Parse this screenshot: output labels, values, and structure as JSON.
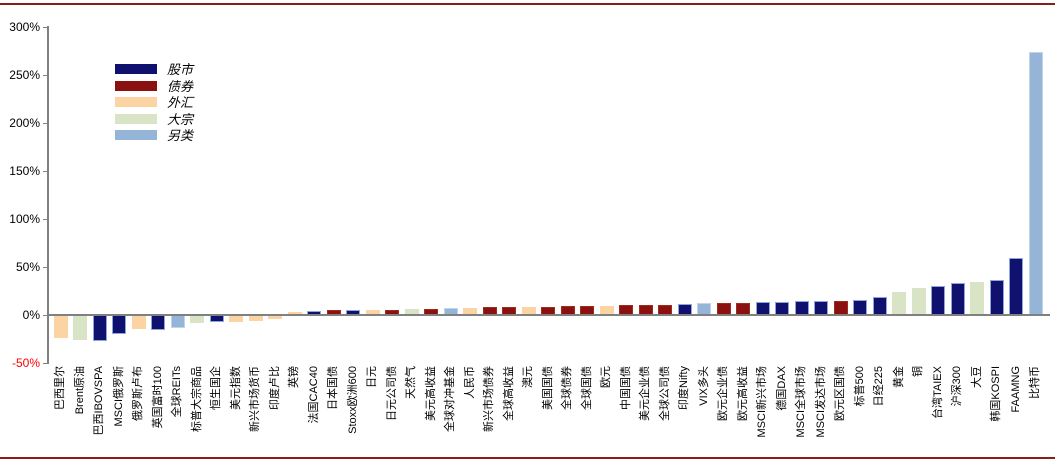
{
  "frame": {
    "top_bottom_border_color": "#8B1C1C",
    "axis_color": "#808080",
    "background": "#FFFFFF",
    "negative_tick_color": "#FF0000"
  },
  "chart_data": {
    "type": "bar",
    "title": "",
    "xlabel": "",
    "ylabel": "",
    "unit": "%",
    "ylim": [
      -50,
      300
    ],
    "grid": false,
    "legend_position": "upper-left-inside",
    "y_ticks": [
      {
        "label": "300%",
        "value": 300,
        "color": "#000000"
      },
      {
        "label": "250%",
        "value": 250,
        "color": "#000000"
      },
      {
        "label": "200%",
        "value": 200,
        "color": "#000000"
      },
      {
        "label": "150%",
        "value": 150,
        "color": "#000000"
      },
      {
        "label": "100%",
        "value": 100,
        "color": "#000000"
      },
      {
        "label": "50%",
        "value": 50,
        "color": "#000000"
      },
      {
        "label": "0%",
        "value": 0,
        "color": "#000000"
      },
      {
        "label": "-50%",
        "value": -50,
        "color": "#FF0000"
      }
    ],
    "legend": [
      {
        "key": "stock",
        "label": "股市",
        "color": "#10106E",
        "border": "#8CA6D9"
      },
      {
        "key": "bond",
        "label": "债券",
        "color": "#8B1010",
        "border": "#9E2B1B"
      },
      {
        "key": "fx",
        "label": "外汇",
        "color": "#FCD3A2",
        "border": "#FCD3A2"
      },
      {
        "key": "commodity",
        "label": "大宗",
        "color": "#D8E4C5",
        "border": "#D8E4C5"
      },
      {
        "key": "alternative",
        "label": "另类",
        "color": "#95B5D8",
        "border": "#C3D4E8"
      }
    ],
    "bars": [
      {
        "label": "巴西里尔",
        "key": "fx",
        "value": -23.5
      },
      {
        "label": "Brent原油",
        "key": "commodity",
        "value": -25
      },
      {
        "label": "巴西IBOVSPA",
        "key": "stock",
        "value": -26.5
      },
      {
        "label": "MSCI俄罗斯",
        "key": "stock",
        "value": -19.5
      },
      {
        "label": "俄罗斯卢布",
        "key": "fx",
        "value": -14.5
      },
      {
        "label": "英国富时100",
        "key": "stock",
        "value": -15.5
      },
      {
        "label": "全球REITs",
        "key": "alternative",
        "value": -12.5
      },
      {
        "label": "标普大宗商品",
        "key": "commodity",
        "value": -7.5
      },
      {
        "label": "恒生国企",
        "key": "stock",
        "value": -7
      },
      {
        "label": "美元指数",
        "key": "fx",
        "value": -6.5
      },
      {
        "label": "新兴市场货币",
        "key": "fx",
        "value": -5.5
      },
      {
        "label": "印度卢比",
        "key": "fx",
        "value": -3.5
      },
      {
        "label": "英镑",
        "key": "fx",
        "value": 2.5
      },
      {
        "label": "法国CAC40",
        "key": "stock",
        "value": 3.5
      },
      {
        "label": "日本国债",
        "key": "bond",
        "value": 4.5
      },
      {
        "label": "Stoxx欧洲600",
        "key": "stock",
        "value": 4.8
      },
      {
        "label": "日元",
        "key": "fx",
        "value": 5
      },
      {
        "label": "日元公司债",
        "key": "bond",
        "value": 5.2
      },
      {
        "label": "天然气",
        "key": "commodity",
        "value": 5.5
      },
      {
        "label": "美元高收益",
        "key": "bond",
        "value": 6
      },
      {
        "label": "全球对冲基金",
        "key": "alternative",
        "value": 6.3
      },
      {
        "label": "人民币",
        "key": "fx",
        "value": 6.8
      },
      {
        "label": "新兴市场债券",
        "key": "bond",
        "value": 7.3
      },
      {
        "label": "全球高收益",
        "key": "bond",
        "value": 7.6
      },
      {
        "label": "澳元",
        "key": "fx",
        "value": 7.8
      },
      {
        "label": "美国国债",
        "key": "bond",
        "value": 8.2
      },
      {
        "label": "全球债券",
        "key": "bond",
        "value": 8.4
      },
      {
        "label": "全球国债",
        "key": "bond",
        "value": 8.7
      },
      {
        "label": "欧元",
        "key": "fx",
        "value": 9.2
      },
      {
        "label": "中国国债",
        "key": "bond",
        "value": 9.6
      },
      {
        "label": "美元企业债",
        "key": "bond",
        "value": 9.8
      },
      {
        "label": "全球公司债",
        "key": "bond",
        "value": 10.2
      },
      {
        "label": "印度Nifty",
        "key": "stock",
        "value": 11.3
      },
      {
        "label": "VIX多头",
        "key": "alternative",
        "value": 11.8
      },
      {
        "label": "欧元企业债",
        "key": "bond",
        "value": 11.8
      },
      {
        "label": "欧元高收益",
        "key": "bond",
        "value": 12.2
      },
      {
        "label": "MSCI新兴市场",
        "key": "stock",
        "value": 13.2
      },
      {
        "label": "德国DAX",
        "key": "stock",
        "value": 13.5
      },
      {
        "label": "MSCI全球市场",
        "key": "stock",
        "value": 13.8
      },
      {
        "label": "MSCI发达市场",
        "key": "stock",
        "value": 14.3
      },
      {
        "label": "欧元区国债",
        "key": "bond",
        "value": 14.3
      },
      {
        "label": "标普500",
        "key": "stock",
        "value": 15.3
      },
      {
        "label": "日经225",
        "key": "stock",
        "value": 18.5
      },
      {
        "label": "黄金",
        "key": "commodity",
        "value": 23.5
      },
      {
        "label": "铜",
        "key": "commodity",
        "value": 28
      },
      {
        "label": "台湾TAIEX",
        "key": "stock",
        "value": 29.5
      },
      {
        "label": "沪深300",
        "key": "stock",
        "value": 33
      },
      {
        "label": "大豆",
        "key": "commodity",
        "value": 34
      },
      {
        "label": "韩国KOSPI",
        "key": "stock",
        "value": 36
      },
      {
        "label": "FAAMNG",
        "key": "stock",
        "value": 58.5
      },
      {
        "label": "比特币",
        "key": "alternative",
        "value": 273
      }
    ]
  }
}
